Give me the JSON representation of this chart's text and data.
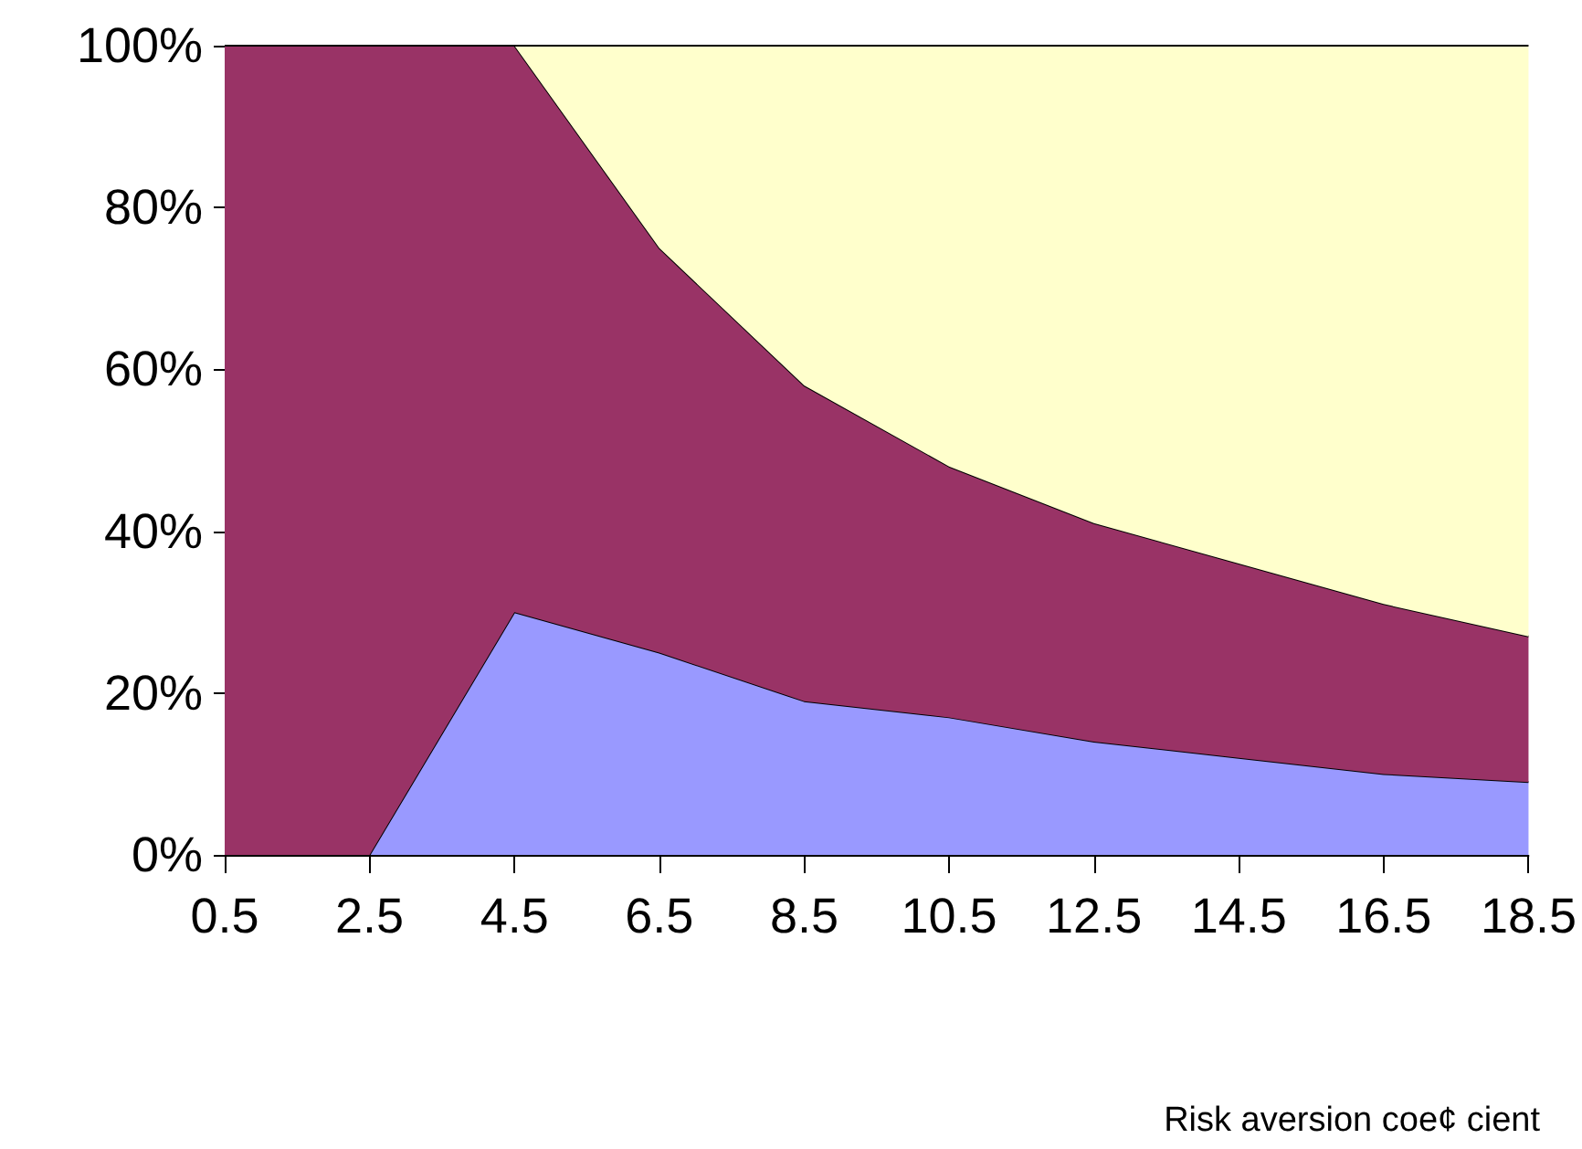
{
  "chart_data": {
    "type": "area",
    "stacked": true,
    "xlabel": "Risk aversion coe¢ cient",
    "categories": [
      "0.5",
      "2.5",
      "4.5",
      "6.5",
      "8.5",
      "10.5",
      "12.5",
      "14.5",
      "16.5",
      "18.5"
    ],
    "series": [
      {
        "color": "#9999ff",
        "values": [
          0,
          0,
          30,
          25,
          19,
          17,
          14,
          12,
          10,
          9
        ]
      },
      {
        "color": "#993366",
        "values": [
          100,
          100,
          70,
          50,
          39,
          31,
          27,
          24,
          21,
          18
        ]
      },
      {
        "color": "#ffffcc",
        "values": [
          0,
          0,
          0,
          25,
          42,
          52,
          59,
          64,
          69,
          73
        ]
      }
    ],
    "ylim": [
      0,
      100
    ],
    "yticks": [
      {
        "value": 0,
        "label": "0%"
      },
      {
        "value": 20,
        "label": "20%"
      },
      {
        "value": 40,
        "label": "40%"
      },
      {
        "value": 60,
        "label": "60%"
      },
      {
        "value": 80,
        "label": "80%"
      },
      {
        "value": 100,
        "label": "100%"
      }
    ],
    "grid": false
  }
}
